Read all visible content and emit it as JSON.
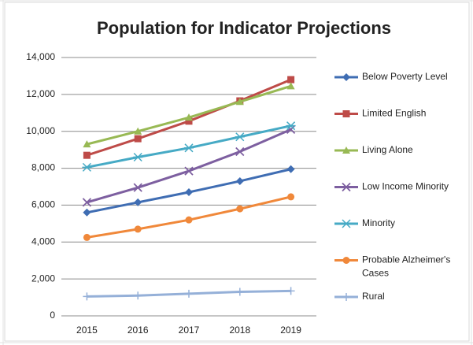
{
  "chart_data": {
    "type": "line",
    "title": "Population for Indicator Projections",
    "categories": [
      "2015",
      "2016",
      "2017",
      "2018",
      "2019"
    ],
    "series": [
      {
        "name": "Below Poverty Level",
        "color": "#3f6db3",
        "marker": "diamond",
        "values": [
          5600,
          6150,
          6700,
          7300,
          7950
        ]
      },
      {
        "name": "Limited English",
        "color": "#be4b48",
        "marker": "square",
        "values": [
          8700,
          9600,
          10550,
          11650,
          12800
        ]
      },
      {
        "name": "Living Alone",
        "color": "#98b954",
        "marker": "triangle",
        "values": [
          9300,
          10000,
          10750,
          11600,
          12450
        ]
      },
      {
        "name": "Low Income Minority",
        "color": "#7d5fa0",
        "marker": "x",
        "values": [
          6150,
          6950,
          7850,
          8900,
          10100
        ]
      },
      {
        "name": "Minority",
        "color": "#46aac5",
        "marker": "star",
        "values": [
          8050,
          8600,
          9100,
          9700,
          10300
        ]
      },
      {
        "name": "Probable Alzheimer's Cases",
        "color": "#f0883a",
        "marker": "circle",
        "values": [
          4250,
          4700,
          5200,
          5800,
          6450
        ]
      },
      {
        "name": "Rural",
        "color": "#95b0d8",
        "marker": "plus",
        "values": [
          1050,
          1100,
          1200,
          1300,
          1350
        ]
      }
    ],
    "ylim": [
      0,
      14000
    ],
    "yticks": [
      0,
      {
        "value": 2000,
        "label": "2,000"
      },
      {
        "value": 4000,
        "label": "4,000"
      },
      {
        "value": 6000,
        "label": "6,000"
      },
      {
        "value": 8000,
        "label": "8,000"
      },
      {
        "value": 10000,
        "label": "10,000"
      },
      {
        "value": 12000,
        "label": "12,000"
      },
      {
        "value": 14000,
        "label": "14,000"
      }
    ],
    "grid": true,
    "legend": "right"
  }
}
